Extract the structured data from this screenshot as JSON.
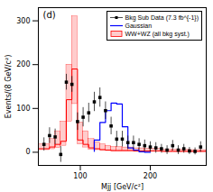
{
  "chart_data": {
    "type": "histogram",
    "xlabel": "Mjj [GeV/c²]",
    "ylabel": "Events/(8 GeV/c²)",
    "xlim": [
      40,
      280
    ],
    "ylim": [
      -30,
      330
    ],
    "xticks": [
      100,
      200
    ],
    "yticks": [
      0,
      100,
      200,
      300
    ],
    "legend": "upper right",
    "annotation": "(d)",
    "series": [
      {
        "name": "Bkg Sub Data (7.3 fb^{-1})",
        "type": "errorbar",
        "color": "black",
        "marker": "square",
        "x": [
          48,
          56,
          64,
          72,
          80,
          88,
          96,
          104,
          112,
          120,
          128,
          136,
          144,
          152,
          160,
          168,
          176,
          184,
          192,
          200,
          208,
          216,
          224,
          232,
          240,
          248,
          256,
          264,
          272
        ],
        "values": [
          18,
          38,
          35,
          -5,
          160,
          155,
          70,
          80,
          90,
          115,
          125,
          95,
          60,
          30,
          30,
          22,
          22,
          18,
          15,
          12,
          10,
          8,
          5,
          15,
          5,
          8,
          3,
          2,
          12
        ],
        "errors": [
          15,
          18,
          18,
          18,
          18,
          18,
          20,
          22,
          22,
          22,
          22,
          20,
          20,
          18,
          18,
          15,
          15,
          13,
          13,
          12,
          12,
          10,
          10,
          12,
          10,
          10,
          8,
          8,
          12
        ]
      },
      {
        "name": "Gaussian",
        "type": "step",
        "color": "blue",
        "bins": [
          120,
          128,
          136,
          144,
          152,
          160,
          168,
          176,
          184,
          192,
          200
        ],
        "values": [
          28,
          68,
          95,
          112,
          110,
          58,
          10,
          5,
          1,
          0
        ]
      },
      {
        "name": "WW+WZ (all bkg syst.)",
        "type": "band_step",
        "color": "red",
        "bins": [
          40,
          56,
          64,
          72,
          80,
          88,
          96,
          104,
          112,
          120,
          128,
          136,
          144,
          152,
          160,
          168,
          176,
          184,
          192,
          200,
          208,
          216,
          224,
          232,
          240,
          248,
          256,
          264,
          272,
          280
        ],
        "values": [
          8,
          12,
          18,
          25,
          120,
          190,
          28,
          18,
          10,
          8,
          6,
          5,
          4,
          4,
          4,
          4,
          3,
          3,
          3,
          3,
          3,
          2,
          2,
          2,
          2,
          2,
          2,
          2,
          2
        ],
        "errors_lo": [
          3,
          5,
          8,
          10,
          50,
          80,
          10,
          7,
          4,
          3,
          2,
          2,
          2,
          2,
          2,
          2,
          1,
          1,
          1,
          1,
          1,
          1,
          1,
          1,
          1,
          1,
          1,
          1,
          1
        ],
        "errors_hi": [
          10,
          18,
          30,
          45,
          80,
          120,
          40,
          30,
          20,
          15,
          12,
          10,
          8,
          8,
          7,
          7,
          6,
          6,
          5,
          5,
          5,
          4,
          4,
          4,
          4,
          4,
          3,
          3,
          3
        ]
      }
    ]
  }
}
